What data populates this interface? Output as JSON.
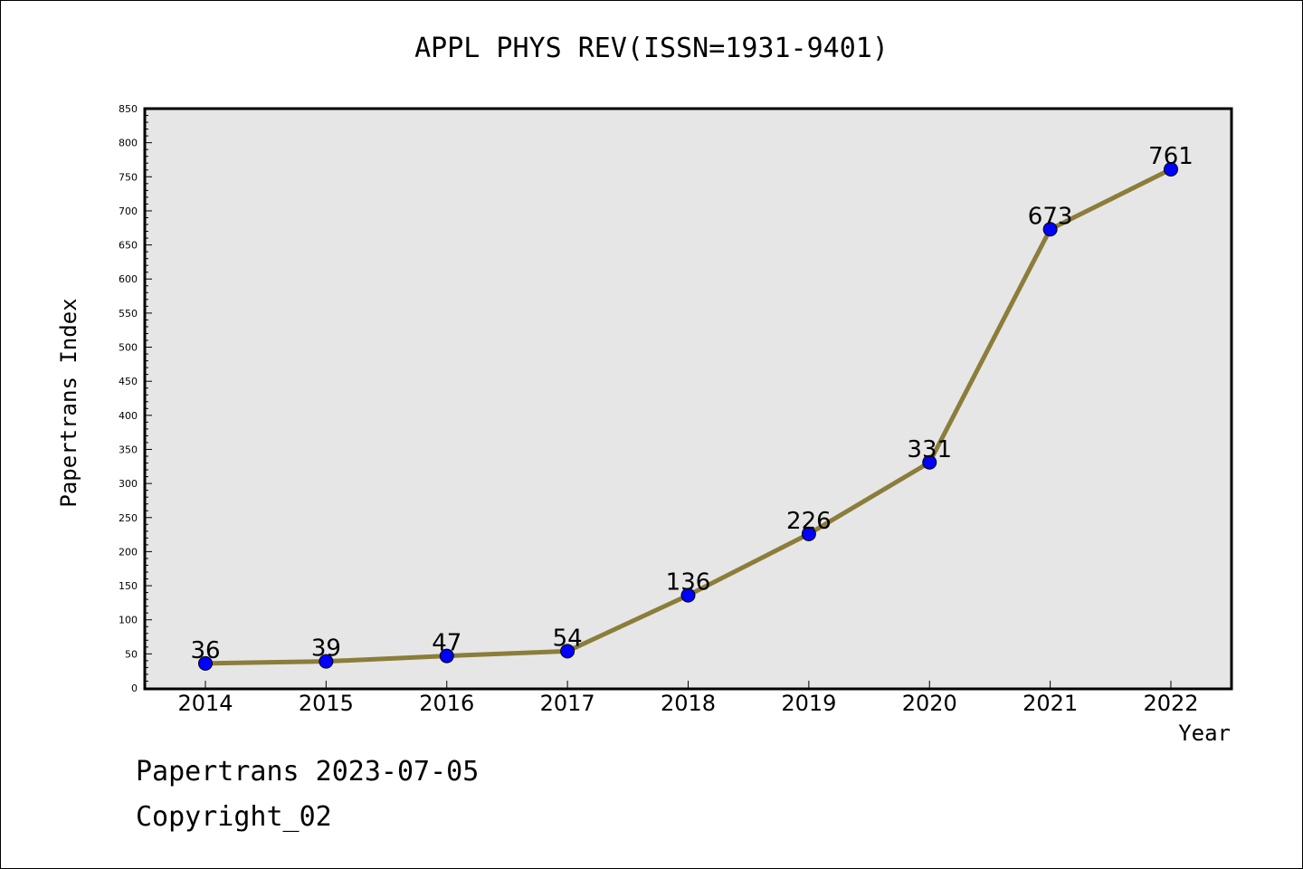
{
  "chart_data": {
    "type": "line",
    "title": "APPL PHYS REV(ISSN=1931-9401)",
    "xlabel": "Year",
    "ylabel": "Papertrans Index",
    "categories": [
      "2014",
      "2015",
      "2016",
      "2017",
      "2018",
      "2019",
      "2020",
      "2021",
      "2022"
    ],
    "series": [
      {
        "values": [
          36,
          39,
          47,
          54,
          136,
          226,
          331,
          673,
          761
        ]
      }
    ],
    "data_labels": [
      "36",
      "39",
      "47",
      "54",
      "136",
      "226",
      "331",
      "673",
      "761"
    ],
    "ylim": [
      0,
      850
    ],
    "yticks": [
      0,
      50,
      100,
      150,
      200,
      250,
      300,
      350,
      400,
      450,
      500,
      550,
      600,
      650,
      700,
      750,
      800,
      850
    ],
    "grid": false,
    "legend": "none",
    "colors": {
      "line": "#8b7d3a",
      "marker": "#0000ff",
      "plot_background": "#e6e6e6"
    }
  },
  "footer": {
    "date_line": "Papertrans 2023-07-05",
    "copyright_line": "Copyright_02"
  }
}
